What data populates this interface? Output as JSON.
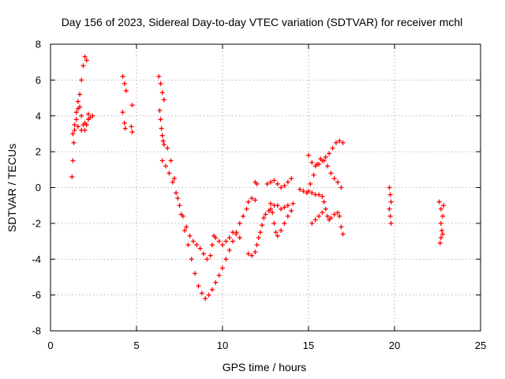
{
  "chart_data": {
    "type": "scatter",
    "title": "Day 156 of 2023, Sidereal Day-to-day VTEC variation (SDTVAR) for receiver mchl",
    "xlabel": "GPS time / hours",
    "ylabel": "SDTVAR / TECUs",
    "xlim": [
      0,
      25
    ],
    "ylim": [
      -8,
      8
    ],
    "xticks": [
      "0",
      "5",
      "10",
      "15",
      "20",
      "25"
    ],
    "yticks": [
      "-8",
      "-6",
      "-4",
      "-2",
      "0",
      "2",
      "4",
      "6",
      "8"
    ],
    "grid": true,
    "legend": "none",
    "marker": "+",
    "color": "#ff0000",
    "series": [
      {
        "values": [
          [
            1.25,
            0.6
          ],
          [
            1.3,
            1.5
          ],
          [
            1.35,
            2.5
          ],
          [
            1.4,
            3.2
          ],
          [
            1.5,
            3.8
          ],
          [
            1.6,
            4.4
          ],
          [
            1.7,
            5.2
          ],
          [
            1.8,
            6.0
          ],
          [
            1.9,
            6.8
          ],
          [
            2.0,
            7.3
          ],
          [
            2.1,
            7.1
          ],
          [
            1.3,
            3.0
          ],
          [
            1.4,
            3.5
          ],
          [
            1.5,
            4.2
          ],
          [
            1.6,
            4.8
          ],
          [
            1.7,
            4.5
          ],
          [
            1.8,
            4.0
          ],
          [
            1.9,
            3.5
          ],
          [
            2.0,
            3.2
          ],
          [
            2.1,
            3.5
          ],
          [
            2.2,
            3.8
          ],
          [
            2.3,
            3.9
          ],
          [
            2.45,
            4.0
          ],
          [
            1.6,
            3.4
          ],
          [
            1.8,
            3.2
          ],
          [
            2.0,
            3.6
          ],
          [
            2.2,
            4.1
          ],
          [
            4.2,
            6.2
          ],
          [
            4.3,
            5.8
          ],
          [
            4.4,
            5.4
          ],
          [
            4.2,
            4.2
          ],
          [
            4.3,
            3.6
          ],
          [
            4.35,
            3.3
          ],
          [
            4.75,
            4.6
          ],
          [
            4.7,
            3.4
          ],
          [
            4.75,
            3.1
          ],
          [
            6.3,
            6.2
          ],
          [
            6.4,
            5.8
          ],
          [
            6.5,
            5.3
          ],
          [
            6.6,
            4.9
          ],
          [
            6.35,
            4.3
          ],
          [
            6.4,
            3.8
          ],
          [
            6.45,
            3.3
          ],
          [
            6.5,
            2.9
          ],
          [
            6.55,
            2.6
          ],
          [
            6.6,
            2.4
          ],
          [
            6.5,
            1.5
          ],
          [
            6.7,
            1.2
          ],
          [
            6.9,
            0.8
          ],
          [
            7.1,
            0.3
          ],
          [
            7.3,
            -0.3
          ],
          [
            7.5,
            -1.0
          ],
          [
            7.7,
            -1.6
          ],
          [
            7.9,
            -2.2
          ],
          [
            8.1,
            -2.7
          ],
          [
            8.3,
            -3.0
          ],
          [
            8.5,
            -3.2
          ],
          [
            8.7,
            -3.4
          ],
          [
            8.9,
            -3.7
          ],
          [
            9.1,
            -4.0
          ],
          [
            9.3,
            -3.8
          ],
          [
            9.4,
            -3.2
          ],
          [
            9.5,
            -2.7
          ],
          [
            6.8,
            2.2
          ],
          [
            7.0,
            1.5
          ],
          [
            7.2,
            0.5
          ],
          [
            7.4,
            -0.6
          ],
          [
            7.6,
            -1.5
          ],
          [
            7.8,
            -2.4
          ],
          [
            8.0,
            -3.2
          ],
          [
            8.2,
            -4.0
          ],
          [
            8.4,
            -4.8
          ],
          [
            8.6,
            -5.5
          ],
          [
            8.8,
            -5.9
          ],
          [
            9.0,
            -6.2
          ],
          [
            9.2,
            -6.0
          ],
          [
            9.4,
            -5.7
          ],
          [
            9.6,
            -5.3
          ],
          [
            9.8,
            -4.9
          ],
          [
            10.0,
            -4.5
          ],
          [
            10.2,
            -4.0
          ],
          [
            10.4,
            -3.5
          ],
          [
            10.6,
            -3.0
          ],
          [
            10.8,
            -2.5
          ],
          [
            11.0,
            -2.0
          ],
          [
            11.2,
            -1.6
          ],
          [
            11.4,
            -1.2
          ],
          [
            9.6,
            -2.8
          ],
          [
            9.8,
            -3.0
          ],
          [
            10.0,
            -3.2
          ],
          [
            10.2,
            -3.0
          ],
          [
            10.4,
            -2.8
          ],
          [
            10.6,
            -2.5
          ],
          [
            10.8,
            -2.6
          ],
          [
            11.0,
            -2.8
          ],
          [
            11.5,
            -0.8
          ],
          [
            11.7,
            -0.6
          ],
          [
            11.9,
            -0.7
          ],
          [
            11.5,
            -3.7
          ],
          [
            11.7,
            -3.8
          ],
          [
            11.9,
            -3.6
          ],
          [
            12.0,
            -3.2
          ],
          [
            12.1,
            -2.8
          ],
          [
            12.2,
            -2.5
          ],
          [
            12.3,
            -2.1
          ],
          [
            12.4,
            -1.7
          ],
          [
            12.5,
            -1.5
          ],
          [
            12.7,
            -1.3
          ],
          [
            11.9,
            0.3
          ],
          [
            12.0,
            0.2
          ],
          [
            12.6,
            0.2
          ],
          [
            12.8,
            0.3
          ],
          [
            13.0,
            0.4
          ],
          [
            13.2,
            0.2
          ],
          [
            13.4,
            0.0
          ],
          [
            13.6,
            0.1
          ],
          [
            13.8,
            0.3
          ],
          [
            14.0,
            0.5
          ],
          [
            12.8,
            -0.9
          ],
          [
            12.9,
            -1.4
          ],
          [
            13.0,
            -2.0
          ],
          [
            13.1,
            -2.5
          ],
          [
            13.2,
            -2.7
          ],
          [
            13.4,
            -2.4
          ],
          [
            13.6,
            -2.0
          ],
          [
            13.8,
            -1.6
          ],
          [
            14.0,
            -1.3
          ],
          [
            14.1,
            -0.9
          ],
          [
            12.8,
            -1.2
          ],
          [
            13.0,
            -1.0
          ],
          [
            13.2,
            -1.0
          ],
          [
            13.4,
            -1.2
          ],
          [
            13.6,
            -1.1
          ],
          [
            13.8,
            -1.0
          ],
          [
            14.5,
            -0.1
          ],
          [
            14.7,
            -0.2
          ],
          [
            14.9,
            -0.3
          ],
          [
            15.1,
            0.2
          ],
          [
            15.3,
            0.7
          ],
          [
            15.5,
            1.3
          ],
          [
            15.7,
            1.6
          ],
          [
            15.9,
            1.5
          ],
          [
            16.1,
            1.2
          ],
          [
            16.3,
            0.8
          ],
          [
            16.5,
            0.5
          ],
          [
            16.7,
            0.3
          ],
          [
            16.9,
            0.0
          ],
          [
            15.0,
            1.8
          ],
          [
            15.2,
            1.4
          ],
          [
            15.4,
            1.2
          ],
          [
            15.6,
            1.3
          ],
          [
            15.8,
            1.5
          ],
          [
            16.0,
            1.7
          ],
          [
            16.2,
            1.9
          ],
          [
            16.4,
            2.2
          ],
          [
            16.6,
            2.5
          ],
          [
            16.8,
            2.6
          ],
          [
            17.0,
            2.5
          ],
          [
            15.0,
            -0.2
          ],
          [
            15.2,
            -0.3
          ],
          [
            15.4,
            -0.4
          ],
          [
            15.6,
            -0.4
          ],
          [
            15.8,
            -0.5
          ],
          [
            15.9,
            -0.8
          ],
          [
            16.0,
            -1.2
          ],
          [
            16.1,
            -1.6
          ],
          [
            16.2,
            -1.8
          ],
          [
            16.3,
            -1.7
          ],
          [
            16.5,
            -1.5
          ],
          [
            16.7,
            -1.4
          ],
          [
            16.8,
            -1.6
          ],
          [
            16.9,
            -2.2
          ],
          [
            17.0,
            -2.6
          ],
          [
            15.2,
            -2.0
          ],
          [
            15.4,
            -1.8
          ],
          [
            15.6,
            -1.6
          ],
          [
            15.8,
            -1.4
          ],
          [
            19.7,
            0.0
          ],
          [
            19.75,
            -0.4
          ],
          [
            19.8,
            -0.8
          ],
          [
            19.7,
            -1.2
          ],
          [
            19.75,
            -1.6
          ],
          [
            19.8,
            -2.0
          ],
          [
            22.6,
            -0.8
          ],
          [
            22.7,
            -1.2
          ],
          [
            22.8,
            -1.6
          ],
          [
            22.7,
            -2.0
          ],
          [
            22.75,
            -2.4
          ],
          [
            22.7,
            -2.8
          ],
          [
            22.65,
            -3.1
          ],
          [
            22.8,
            -2.6
          ],
          [
            22.85,
            -1.0
          ]
        ]
      }
    ]
  }
}
